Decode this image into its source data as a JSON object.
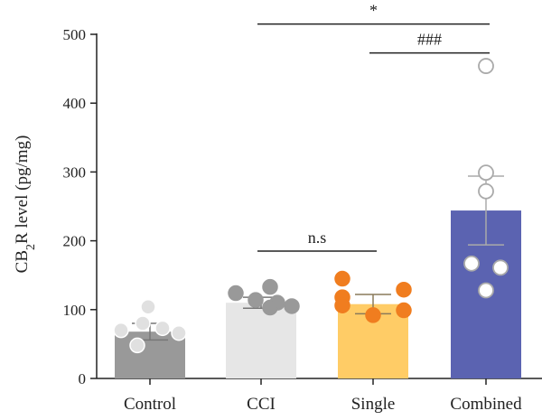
{
  "chart_data": {
    "type": "bar",
    "categories": [
      "Control",
      "CCI",
      "Single",
      "Combined"
    ],
    "ylabel": {
      "prefix": "CB",
      "sub": "2",
      "suffix": "R level (pg/mg)"
    },
    "ylim": [
      0,
      500
    ],
    "yticks": [
      0,
      100,
      200,
      300,
      400,
      500
    ],
    "series": [
      {
        "values": [
          68,
          110,
          108,
          244
        ],
        "errors": [
          12,
          8,
          14,
          50
        ],
        "colors": [
          "#999999",
          "#e6e6e6",
          "#ffcc66",
          "#5b63b1"
        ],
        "points": [
          [
            104,
            80,
            70,
            48,
            66,
            73
          ],
          [
            124,
            133,
            114,
            110,
            105,
            103
          ],
          [
            145,
            118,
            106,
            92,
            129,
            99
          ],
          [
            454,
            299,
            272,
            167,
            161,
            128
          ]
        ],
        "point_fill": [
          "#e0e0e0",
          "#999999",
          "#f07d1f",
          "#ffffff"
        ],
        "point_stroke": [
          "#ffffff",
          "#999999",
          "#f07d1f",
          "#aaaaaa"
        ]
      }
    ],
    "annotations": [
      {
        "from": "CCI",
        "to": "Combined",
        "text": "*",
        "y": 515
      },
      {
        "from": "Single",
        "to": "Combined",
        "text": "###",
        "y": 473
      },
      {
        "from": "CCI",
        "to": "Single",
        "text": "n.s",
        "y": 185
      }
    ]
  }
}
